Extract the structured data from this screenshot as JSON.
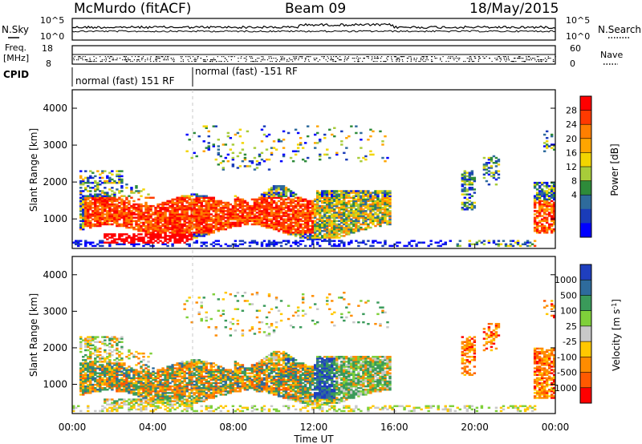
{
  "header": {
    "station": "McMurdo (fitACF)",
    "beam": "Beam 09",
    "date": "18/May/2015"
  },
  "summary": {
    "nsky_label": "N.Sky",
    "nsearch_label": "N.Search",
    "freq_label_1": "Freq.",
    "freq_label_2": "[MHz]",
    "nave_label": "Nave",
    "cpid_label": "CPID",
    "left_ticks_top": [
      "10^5",
      "10^0"
    ],
    "right_ticks_top": [
      "10^5",
      "10^0"
    ],
    "left_ticks_freq": [
      "18",
      "8"
    ],
    "right_ticks_nave": [
      "60",
      "0"
    ],
    "cpid_segments": [
      {
        "label": "normal (fast) 151 RF",
        "start_hour": 0,
        "end_hour": 6
      },
      {
        "label": "normal (fast) -151 RF",
        "start_hour": 6,
        "end_hour": 24
      }
    ]
  },
  "chart_data": [
    {
      "type": "heatmap",
      "name": "power",
      "ylabel": "Slant Range [km]",
      "xlabel": "",
      "xlim": [
        0,
        24
      ],
      "ylim": [
        200,
        4500
      ],
      "yticks": [
        1000,
        2000,
        3000,
        4000
      ],
      "colorbar": {
        "label": "Power [dB]",
        "ticks": [
          "28",
          "24",
          "20",
          "16",
          "12",
          "8",
          "4"
        ],
        "colors": [
          "#ff0000",
          "#ff3a00",
          "#ff7f00",
          "#ffa500",
          "#f2d500",
          "#a8cc3a",
          "#2e8b3a",
          "#2e6b9c",
          "#1a3cb8",
          "#0000ff"
        ]
      },
      "regions": [
        {
          "desc": "main echo band",
          "x": [
            0.3,
            15.8
          ],
          "y": [
            600,
            1600
          ],
          "level": "high"
        },
        {
          "desc": "upper sporadic",
          "x": [
            5.5,
            15.7
          ],
          "y": [
            2600,
            3500
          ],
          "level": "low"
        },
        {
          "desc": "late patches",
          "x": [
            19.3,
            21.2
          ],
          "y": [
            1000,
            2300
          ],
          "level": "low"
        },
        {
          "desc": "end patch",
          "x": [
            22.8,
            24
          ],
          "y": [
            700,
            3400
          ],
          "level": "mid"
        }
      ]
    },
    {
      "type": "heatmap",
      "name": "velocity",
      "ylabel": "Slant Range [km]",
      "xlabel": "Time UT",
      "xlim": [
        0,
        24
      ],
      "ylim": [
        200,
        4500
      ],
      "yticks": [
        1000,
        2000,
        3000,
        4000
      ],
      "xticks": [
        "00:00",
        "04:00",
        "08:00",
        "12:00",
        "16:00",
        "20:00",
        "00:00"
      ],
      "colorbar": {
        "label": "Velocity [m s^-1]",
        "ticks": [
          "1000",
          "500",
          "100",
          "25",
          "-25",
          "-100",
          "-500",
          "-1000"
        ],
        "colors": [
          "#1f3fbf",
          "#2e6b9c",
          "#3a9a5a",
          "#7fd03a",
          "#c8c8c8",
          "#ffc800",
          "#ff8c00",
          "#ff5a00",
          "#ff0000"
        ]
      },
      "regions": [
        {
          "desc": "main band",
          "x": [
            0.3,
            15.8
          ],
          "y": [
            600,
            1600
          ],
          "level": "mixed"
        },
        {
          "desc": "upper sporadic",
          "x": [
            5.5,
            15.7
          ],
          "y": [
            2600,
            3500
          ],
          "level": "low"
        },
        {
          "desc": "late patches",
          "x": [
            19.3,
            21.2
          ],
          "y": [
            1000,
            2300
          ],
          "level": "negative"
        },
        {
          "desc": "end patch",
          "x": [
            22.8,
            24
          ],
          "y": [
            700,
            3400
          ],
          "level": "negative"
        }
      ]
    }
  ]
}
